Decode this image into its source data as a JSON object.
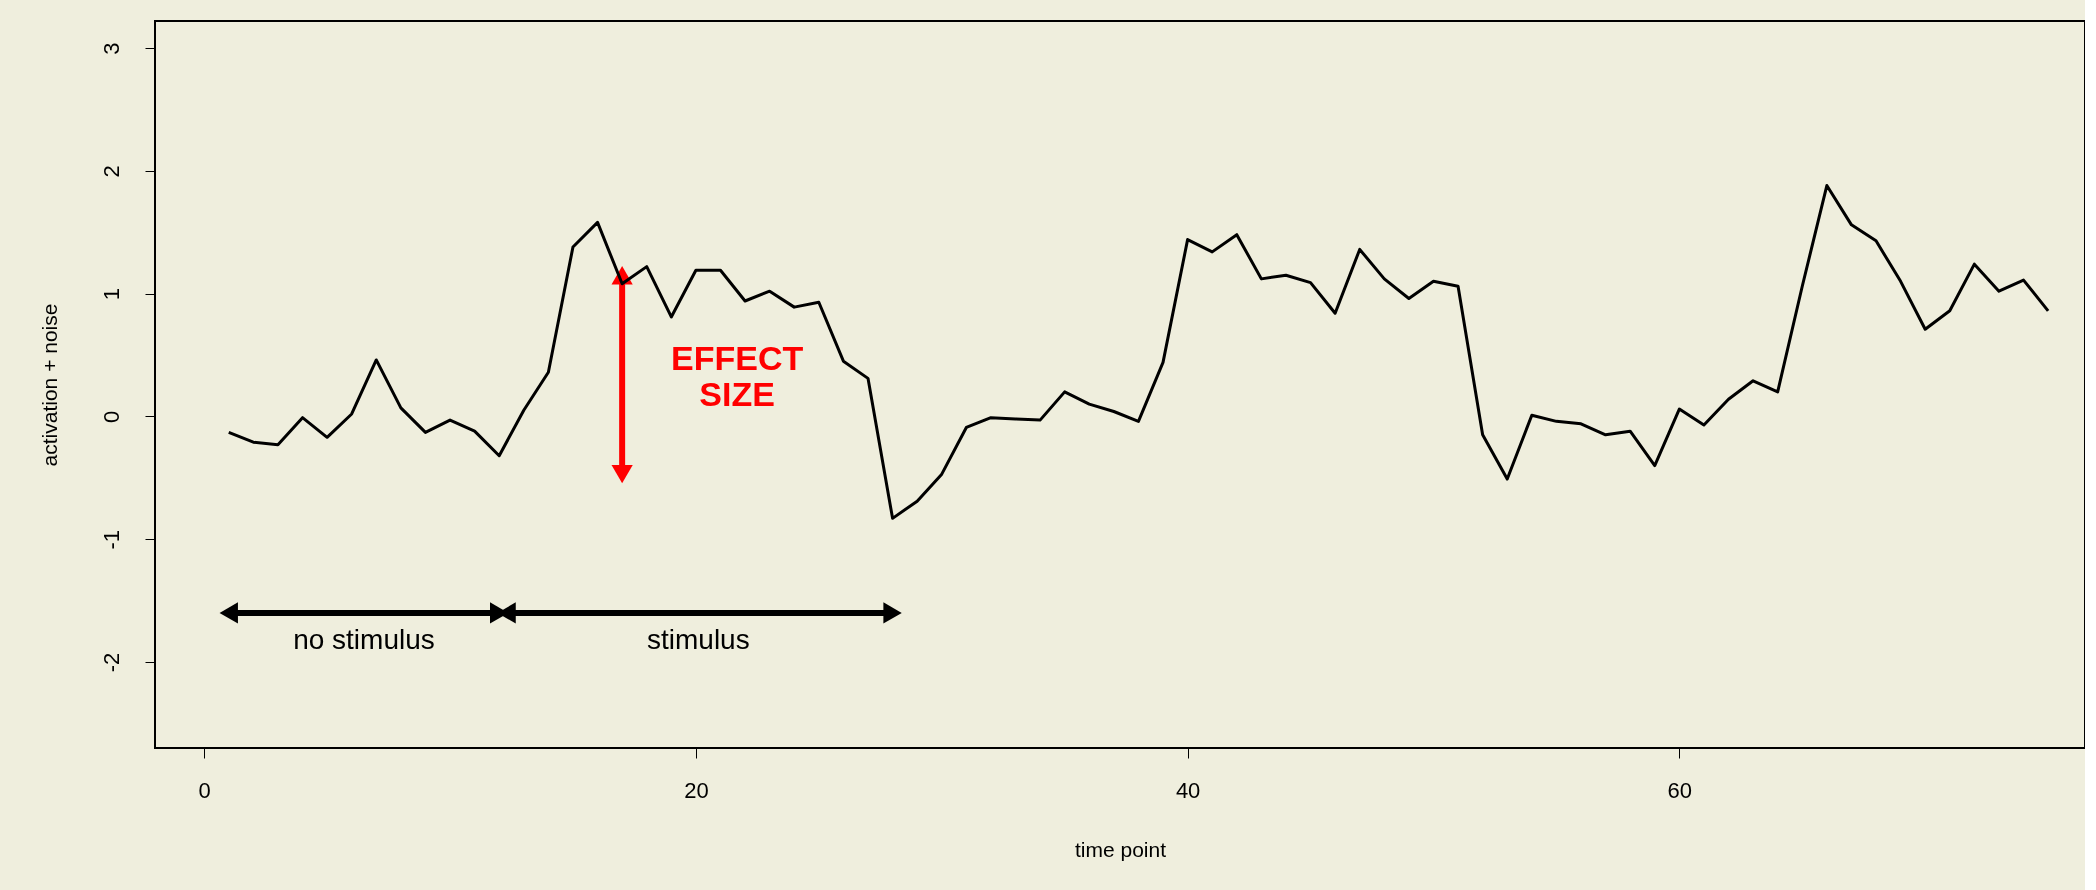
{
  "chart_data": {
    "type": "line",
    "xlabel": "time point",
    "ylabel": "activation + noise",
    "x": [
      1,
      2,
      3,
      4,
      5,
      6,
      7,
      8,
      9,
      10,
      11,
      12,
      13,
      14,
      15,
      16,
      17,
      18,
      19,
      20,
      21,
      22,
      23,
      24,
      25,
      26,
      27,
      28,
      29,
      30,
      31,
      32,
      33,
      34,
      35,
      36,
      37,
      38,
      39,
      40,
      41,
      42,
      43,
      44,
      45,
      46,
      47,
      48,
      49,
      50,
      51,
      52,
      53,
      54,
      55,
      56,
      57,
      58,
      59,
      60,
      61,
      62,
      63,
      64,
      65,
      66,
      67,
      68,
      69,
      70,
      71,
      72,
      73,
      74,
      75
    ],
    "series": [
      {
        "color": "#000000",
        "values": [
          -0.13,
          -0.21,
          -0.23,
          -0.01,
          -0.17,
          0.02,
          0.46,
          0.07,
          -0.13,
          -0.03,
          -0.12,
          -0.32,
          0.05,
          0.36,
          1.38,
          1.58,
          1.08,
          1.22,
          0.81,
          1.19,
          1.19,
          0.94,
          1.02,
          0.89,
          0.93,
          0.45,
          0.31,
          -0.83,
          -0.69,
          -0.47,
          -0.09,
          -0.01,
          -0.02,
          -0.03,
          0.2,
          0.1,
          0.04,
          -0.04,
          0.44,
          1.44,
          1.34,
          1.48,
          1.12,
          1.15,
          1.09,
          0.84,
          1.36,
          1.12,
          0.96,
          1.1,
          1.06,
          -0.15,
          -0.51,
          0.01,
          -0.04,
          -0.06,
          -0.15,
          -0.12,
          -0.4,
          0.06,
          -0.07,
          0.14,
          0.29,
          0.2,
          1.06,
          1.88,
          1.56,
          1.43,
          1.1,
          0.71,
          0.86,
          1.24,
          1.02,
          1.11,
          0.86
        ]
      },
      {
        "color": "#000000",
        "x": [
          1,
          12
        ],
        "values": [
          -1.6,
          -1.6
        ],
        "marker": "triangle"
      },
      {
        "color": "#000000",
        "x": [
          12.3,
          28
        ],
        "values": [
          -1.6,
          -1.6
        ],
        "marker": "triangle"
      },
      {
        "color": "#ff0000",
        "x": [
          17,
          17
        ],
        "values": [
          -0.47,
          1.15
        ],
        "marker": "triangle"
      }
    ],
    "annotations": [
      {
        "text": "no stimulus",
        "x": 6.5,
        "y": -1.6
      },
      {
        "text": "stimulus",
        "x": 20.1,
        "y": -1.6
      },
      "EFFECT SIZE"
    ],
    "xlim": [
      -2,
      76.5
    ],
    "ylim": [
      -2.7,
      3.22
    ],
    "xticks": [
      0,
      20,
      40,
      60
    ],
    "yticks": [
      -2,
      -1,
      0,
      1,
      2,
      3
    ],
    "grid": false,
    "marker": "none",
    "line_style": "solid"
  }
}
